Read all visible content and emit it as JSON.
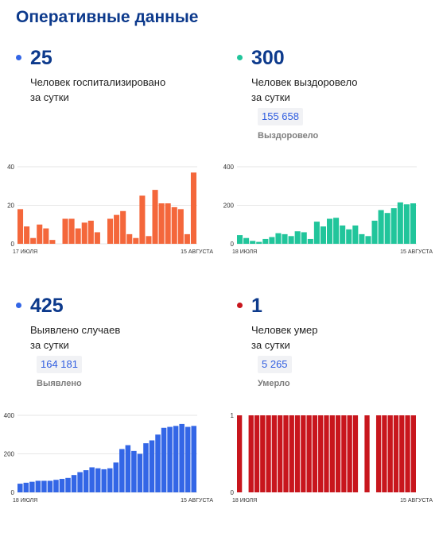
{
  "header": {
    "title": "Оперативные данные"
  },
  "stats": [
    {
      "dot_color": "#3366e6",
      "value": "25",
      "line1": "Человек госпитализировано",
      "line2": "за сутки",
      "total": "",
      "total_label": ""
    },
    {
      "dot_color": "#21c59b",
      "value": "300",
      "line1": "Человек выздоровело",
      "line2": "за сутки",
      "total": "155 658",
      "total_label": "Выздоровело"
    },
    {
      "dot_color": "#3366e6",
      "value": "425",
      "line1": "Выявлено случаев",
      "line2": "за сутки",
      "total": "164 181",
      "total_label": "Выявлено"
    },
    {
      "dot_color": "#c8161d",
      "value": "1",
      "line1": "Человек умер",
      "line2": "за сутки",
      "total": "5 265",
      "total_label": "Умерло"
    }
  ],
  "chart_data": [
    {
      "type": "bar",
      "color": "#f4673b",
      "ylim": [
        0,
        40
      ],
      "yticks": [
        0,
        20,
        40
      ],
      "x_start_label": "17 ИЮЛЯ",
      "x_end_label": "15 АВГУСТА",
      "grid": true,
      "values": [
        18,
        9,
        3,
        10,
        8,
        2,
        0,
        13,
        13,
        8,
        11,
        12,
        6,
        0,
        13,
        15,
        17,
        5,
        3,
        25,
        4,
        28,
        21,
        21,
        19,
        18,
        5,
        37
      ]
    },
    {
      "type": "bar",
      "color": "#21c59b",
      "ylim": [
        0,
        400
      ],
      "yticks": [
        0,
        200,
        400
      ],
      "x_start_label": "18 ИЮЛЯ",
      "x_end_label": "15 АВГУСТА",
      "grid": true,
      "values": [
        45,
        30,
        15,
        10,
        25,
        35,
        55,
        50,
        40,
        65,
        60,
        25,
        115,
        90,
        130,
        135,
        95,
        75,
        95,
        50,
        40,
        120,
        175,
        160,
        185,
        215,
        205,
        210
      ]
    },
    {
      "type": "bar",
      "color": "#3366e6",
      "ylim": [
        0,
        400
      ],
      "yticks": [
        0,
        200,
        400
      ],
      "x_start_label": "18 ИЮЛЯ",
      "x_end_label": "15 АВГУСТА",
      "grid": true,
      "values": [
        45,
        50,
        55,
        60,
        60,
        60,
        65,
        70,
        75,
        90,
        105,
        115,
        130,
        125,
        120,
        125,
        155,
        225,
        245,
        215,
        200,
        255,
        270,
        300,
        335,
        340,
        345,
        355,
        340,
        345
      ]
    },
    {
      "type": "bar",
      "color": "#c8161d",
      "ylim": [
        0,
        1
      ],
      "yticks": [
        0,
        1
      ],
      "x_start_label": "18 ИЮЛЯ",
      "x_end_label": "15 АВГУСТА",
      "grid": false,
      "values": [
        1,
        0,
        1,
        1,
        1,
        1,
        1,
        1,
        1,
        1,
        1,
        1,
        1,
        1,
        1,
        1,
        1,
        1,
        1,
        1,
        1,
        0,
        1,
        0,
        1,
        1,
        1,
        1,
        1,
        1,
        1
      ]
    }
  ]
}
